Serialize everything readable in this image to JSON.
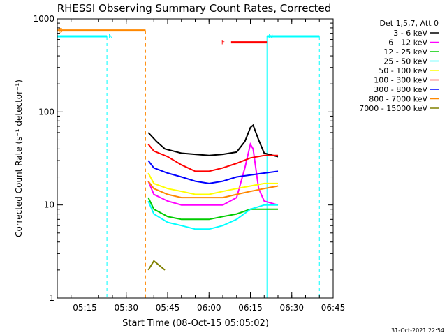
{
  "chart_data": {
    "type": "line",
    "title": "RHESSI Observing Summary Count Rates, Corrected",
    "xlabel": "Start Time (08-Oct-15 05:05:02)",
    "ylabel": "Corrected Count Rate (s⁻¹ detector⁻¹)",
    "y_scale": "log",
    "ylim": [
      1,
      1000
    ],
    "xlim": [
      "05:05",
      "06:45"
    ],
    "x_ticks": [
      "05:15",
      "05:30",
      "05:45",
      "06:00",
      "06:15",
      "06:30",
      "06:45"
    ],
    "y_ticks": [
      "1",
      "10",
      "100",
      "1000"
    ],
    "legend_header": "Det 1,5,7, Att 0",
    "legend_position": "right",
    "timestamp": "31-Oct-2021 22:54",
    "series": [
      {
        "name": "3 - 6 keV",
        "color": "#000000",
        "x": [
          "05:38",
          "05:41",
          "05:44",
          "05:50",
          "05:55",
          "06:00",
          "06:05",
          "06:10",
          "06:13",
          "06:15",
          "06:16",
          "06:18",
          "06:20",
          "06:25"
        ],
        "values": [
          60,
          48,
          40,
          36,
          35,
          34,
          35,
          37,
          48,
          68,
          72,
          50,
          36,
          33
        ]
      },
      {
        "name": "6 - 12 keV",
        "color": "#ff00ff",
        "x": [
          "05:38",
          "05:40",
          "05:45",
          "05:50",
          "05:55",
          "06:00",
          "06:05",
          "06:10",
          "06:13",
          "06:15",
          "06:16",
          "06:18",
          "06:20",
          "06:25"
        ],
        "values": [
          18,
          13,
          11,
          10,
          10,
          10,
          10,
          12,
          25,
          45,
          40,
          15,
          11,
          10
        ]
      },
      {
        "name": "12 - 25 keV",
        "color": "#00cc00",
        "x": [
          "05:38",
          "05:40",
          "05:45",
          "05:50",
          "05:55",
          "06:00",
          "06:05",
          "06:10",
          "06:15",
          "06:20",
          "06:25"
        ],
        "values": [
          12,
          9,
          7.5,
          7,
          7,
          7,
          7.5,
          8,
          9,
          9,
          9
        ]
      },
      {
        "name": "25 - 50 keV",
        "color": "#00ffff",
        "x": [
          "05:38",
          "05:40",
          "05:45",
          "05:50",
          "05:55",
          "06:00",
          "06:05",
          "06:10",
          "06:15",
          "06:20",
          "06:25"
        ],
        "values": [
          11,
          8,
          6.5,
          6,
          5.5,
          5.5,
          6,
          7,
          9,
          10,
          10
        ]
      },
      {
        "name": "50 - 100 keV",
        "color": "#ffff00",
        "x": [
          "05:38",
          "05:40",
          "05:45",
          "05:50",
          "05:55",
          "06:00",
          "06:05",
          "06:10",
          "06:15",
          "06:20",
          "06:25"
        ],
        "values": [
          22,
          17,
          15,
          14,
          13,
          13,
          14,
          15,
          16,
          17,
          17
        ]
      },
      {
        "name": "100 - 300 keV",
        "color": "#ff0000",
        "x": [
          "05:38",
          "05:40",
          "05:45",
          "05:50",
          "05:55",
          "06:00",
          "06:05",
          "06:10",
          "06:15",
          "06:20",
          "06:25"
        ],
        "values": [
          45,
          38,
          33,
          27,
          23,
          23,
          25,
          28,
          32,
          34,
          34
        ]
      },
      {
        "name": "300 - 800 keV",
        "color": "#0000ff",
        "x": [
          "05:38",
          "05:40",
          "05:45",
          "05:50",
          "05:55",
          "06:00",
          "06:05",
          "06:10",
          "06:15",
          "06:20",
          "06:25"
        ],
        "values": [
          30,
          25,
          22,
          20,
          18,
          17,
          18,
          20,
          21,
          22,
          23
        ]
      },
      {
        "name": "800 - 7000 keV",
        "color": "#ff8800",
        "x": [
          "05:38",
          "05:40",
          "05:45",
          "05:50",
          "05:55",
          "06:00",
          "06:05",
          "06:10",
          "06:15",
          "06:20",
          "06:25"
        ],
        "values": [
          18,
          15,
          13,
          12,
          12,
          12,
          12,
          13,
          14,
          15,
          16
        ]
      },
      {
        "name": "7000 - 15000 keV",
        "color": "#808000",
        "x": [
          "05:38",
          "05:40",
          "05:44"
        ],
        "values": [
          2,
          2.5,
          2
        ]
      }
    ],
    "flags": [
      {
        "label": "S",
        "color": "#ff8800",
        "x_start": "05:05",
        "x_end": "05:37",
        "level": 750
      },
      {
        "label": "N",
        "color": "#00ffff",
        "x_start": "05:05",
        "x_end": "05:23",
        "level": 650
      },
      {
        "label": "N",
        "color": "#00ffff",
        "x_start": "06:21",
        "x_end": "06:40",
        "level": 650
      },
      {
        "label": "F",
        "color": "#ff0000",
        "x_start": "06:08",
        "x_end": "06:21",
        "level": 560
      }
    ]
  }
}
